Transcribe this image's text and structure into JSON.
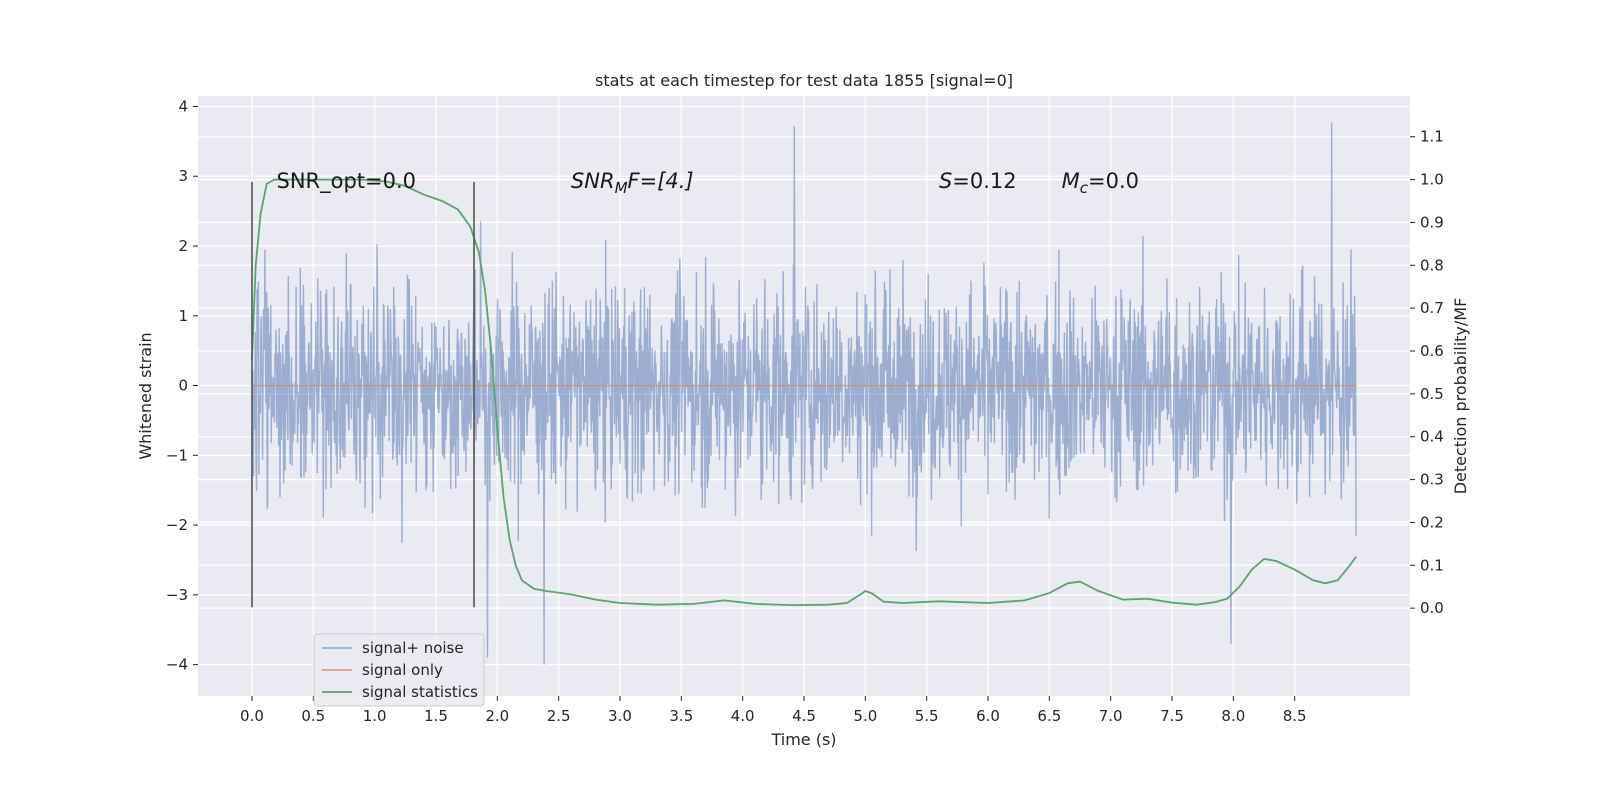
{
  "chart_data": {
    "type": "line",
    "title": "stats at each timestep for test data 1855 [signal=0]",
    "xlabel": "Time (s)",
    "ylabel": "Whitened strain",
    "ylabel_right": "Detection probability/MF",
    "xlim": [
      -0.44,
      9.44
    ],
    "ylim": [
      -4.45,
      4.15
    ],
    "ylim_right": [
      -0.205,
      1.195
    ],
    "x_ticks": [
      0.0,
      0.5,
      1.0,
      1.5,
      2.0,
      2.5,
      3.0,
      3.5,
      4.0,
      4.5,
      5.0,
      5.5,
      6.0,
      6.5,
      7.0,
      7.5,
      8.0,
      8.5
    ],
    "x_tick_labels": [
      "0.0",
      "0.5",
      "1.0",
      "1.5",
      "2.0",
      "2.5",
      "3.0",
      "3.5",
      "4.0",
      "4.5",
      "5.0",
      "5.5",
      "6.0",
      "6.5",
      "7.0",
      "7.5",
      "8.0",
      "8.5"
    ],
    "y_ticks": [
      -4,
      -3,
      -2,
      -1,
      0,
      1,
      2,
      3,
      4
    ],
    "y_tick_labels": [
      "−4",
      "−3",
      "−2",
      "−1",
      "0",
      "1",
      "2",
      "3",
      "4"
    ],
    "y_right_ticks": [
      0.0,
      0.1,
      0.2,
      0.3,
      0.4,
      0.5,
      0.6,
      0.7,
      0.8,
      0.9,
      1.0,
      1.1
    ],
    "y_right_tick_labels": [
      "0.0",
      "0.1",
      "0.2",
      "0.3",
      "0.4",
      "0.5",
      "0.6",
      "0.7",
      "0.8",
      "0.9",
      "1.0",
      "1.1"
    ],
    "grid": true,
    "legend_position": "bottom-left",
    "series": [
      {
        "name": "signal+ noise",
        "axis": "left",
        "color": "#4c72b0",
        "opacity": 0.5,
        "x_range": [
          0.0,
          9.0
        ],
        "approx_range": [
          -4.0,
          3.8
        ],
        "notable_peaks": [
          {
            "x": 4.42,
            "y": 3.72
          },
          {
            "x": 8.8,
            "y": 3.77
          },
          {
            "x": 1.92,
            "y": -3.9
          },
          {
            "x": 2.38,
            "y": -4.0
          },
          {
            "x": 7.98,
            "y": -3.7
          }
        ]
      },
      {
        "name": "signal only",
        "axis": "left",
        "color": "#dd8452",
        "x": [
          0.0,
          9.0
        ],
        "y": [
          0.0,
          0.0
        ]
      },
      {
        "name": "signal statistics",
        "axis": "right",
        "color": "#55a868",
        "x": [
          0.0,
          0.03,
          0.07,
          0.12,
          0.18,
          0.25,
          0.35,
          0.5,
          0.7,
          0.9,
          1.1,
          1.25,
          1.4,
          1.55,
          1.68,
          1.78,
          1.85,
          1.9,
          1.95,
          2.0,
          2.05,
          2.1,
          2.15,
          2.2,
          2.3,
          2.4,
          2.6,
          2.8,
          3.0,
          3.3,
          3.6,
          3.85,
          4.1,
          4.4,
          4.7,
          4.85,
          4.95,
          5.0,
          5.05,
          5.15,
          5.3,
          5.6,
          6.0,
          6.3,
          6.5,
          6.65,
          6.75,
          6.9,
          7.1,
          7.3,
          7.5,
          7.7,
          7.85,
          7.95,
          8.05,
          8.15,
          8.25,
          8.35,
          8.5,
          8.65,
          8.75,
          8.85,
          8.95,
          9.0
        ],
        "y": [
          0.58,
          0.8,
          0.92,
          0.99,
          1.0,
          1.0,
          1.0,
          1.0,
          1.0,
          1.0,
          0.995,
          0.985,
          0.965,
          0.95,
          0.93,
          0.89,
          0.83,
          0.74,
          0.6,
          0.42,
          0.26,
          0.16,
          0.1,
          0.065,
          0.045,
          0.04,
          0.032,
          0.02,
          0.012,
          0.008,
          0.01,
          0.018,
          0.01,
          0.007,
          0.008,
          0.012,
          0.03,
          0.04,
          0.035,
          0.015,
          0.012,
          0.016,
          0.012,
          0.018,
          0.035,
          0.058,
          0.062,
          0.04,
          0.02,
          0.022,
          0.013,
          0.008,
          0.014,
          0.022,
          0.05,
          0.09,
          0.115,
          0.11,
          0.09,
          0.065,
          0.058,
          0.065,
          0.1,
          0.12
        ]
      }
    ],
    "markers": [
      {
        "x": 0.0,
        "y_range": [
          -3.18,
          2.92
        ],
        "color": "#555555"
      },
      {
        "x": 1.81,
        "y_range": [
          -3.18,
          2.92
        ],
        "color": "#555555"
      }
    ],
    "annotations": [
      {
        "text": "SNR_opt=0.0",
        "x": 0.2,
        "y": 2.93,
        "italic": false
      },
      {
        "text": "SNR",
        "sub": "M",
        "after": "F=[4.]",
        "x": 2.6,
        "y": 2.93,
        "italic": true
      },
      {
        "text": "S",
        "after": "=0.12",
        "x": 5.6,
        "y": 2.93,
        "italic": true
      },
      {
        "text": "M",
        "sub": "c",
        "after": "=0.0",
        "x": 6.6,
        "y": 2.93,
        "italic": true
      }
    ]
  }
}
